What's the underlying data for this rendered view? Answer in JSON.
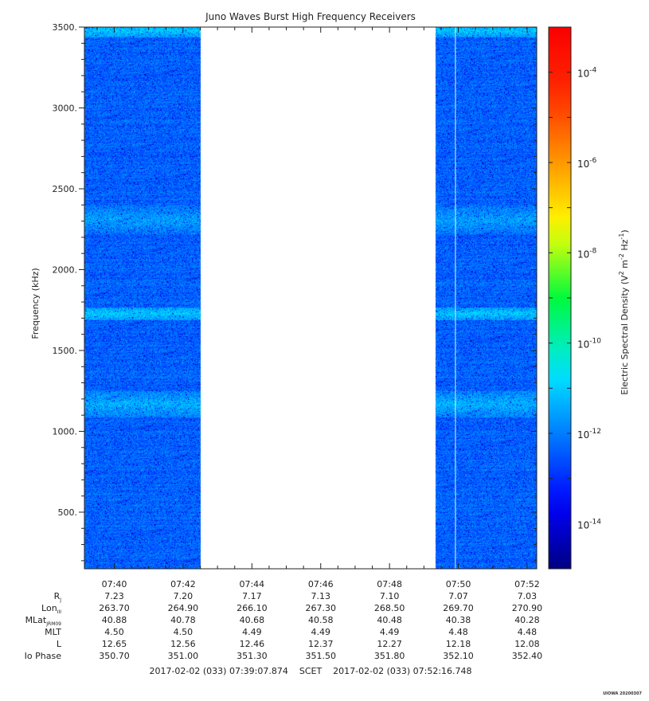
{
  "chart_data": {
    "type": "heatmap",
    "title": "Juno Waves Burst High Frequency Receivers",
    "ylabel": "Frequency (kHz)",
    "colorbar_label_parts": [
      "Electric Spectral Density (V",
      "2",
      " m",
      "-2",
      " Hz",
      "-1",
      ")"
    ],
    "ylim": [
      150,
      3500
    ],
    "y_ticks": [
      {
        "value": 500,
        "label": "500."
      },
      {
        "value": 1000,
        "label": "1000."
      },
      {
        "value": 1500,
        "label": "1500."
      },
      {
        "value": 2000,
        "label": "2000."
      },
      {
        "value": 2500,
        "label": "2500."
      },
      {
        "value": 3000,
        "label": "3000."
      },
      {
        "value": 3500,
        "label": "3500."
      }
    ],
    "x_time_range": [
      "07:39:07.874",
      "07:52:16.748"
    ],
    "x_ticks": [
      "07:40",
      "07:42",
      "07:44",
      "07:46",
      "07:48",
      "07:50",
      "07:52"
    ],
    "data_gap": [
      "07:42:30",
      "07:49:20"
    ],
    "colorbar_log_range": [
      -15,
      -3
    ],
    "colorbar_ticks": [
      {
        "base": "10",
        "exp": "-4",
        "value": -4
      },
      {
        "base": "10",
        "exp": "-6",
        "value": -6
      },
      {
        "base": "10",
        "exp": "-8",
        "value": -8
      },
      {
        "base": "10",
        "exp": "-10",
        "value": -10
      },
      {
        "base": "10",
        "exp": "-12",
        "value": -12
      },
      {
        "base": "10",
        "exp": "-14",
        "value": -14
      }
    ],
    "background_level_log": -12.3,
    "enhanced_bands_khz": [
      {
        "center": 3480,
        "width": 40,
        "level_log": -11.0
      },
      {
        "center": 2310,
        "width": 90,
        "level_log": -11.5
      },
      {
        "center": 1730,
        "width": 40,
        "level_log": -11.0
      },
      {
        "center": 1170,
        "width": 80,
        "level_log": -11.3
      }
    ],
    "ephemeris_rows": [
      {
        "label": "R",
        "sub": "J",
        "values": [
          "7.23",
          "7.20",
          "7.17",
          "7.13",
          "7.10",
          "7.07",
          "7.03"
        ]
      },
      {
        "label": "Lon",
        "sub": "III",
        "values": [
          "263.70",
          "264.90",
          "266.10",
          "267.30",
          "268.50",
          "269.70",
          "270.90"
        ]
      },
      {
        "label": "MLat",
        "sub": "JRM09",
        "values": [
          "40.88",
          "40.78",
          "40.68",
          "40.58",
          "40.48",
          "40.38",
          "40.28"
        ]
      },
      {
        "label": "MLT",
        "sub": "",
        "values": [
          "4.50",
          "4.50",
          "4.49",
          "4.49",
          "4.49",
          "4.48",
          "4.48"
        ]
      },
      {
        "label": "L",
        "sub": "",
        "values": [
          "12.65",
          "12.56",
          "12.46",
          "12.37",
          "12.27",
          "12.18",
          "12.08"
        ]
      },
      {
        "label": "Io Phase",
        "sub": "",
        "values": [
          "350.70",
          "351.00",
          "351.30",
          "351.50",
          "351.80",
          "352.10",
          "352.40"
        ]
      }
    ],
    "footer": "2017-02-02 (033) 07:39:07.874    SCET    2017-02-02 (033) 07:52:16.748",
    "stamp": "UIOWA 20200307"
  }
}
